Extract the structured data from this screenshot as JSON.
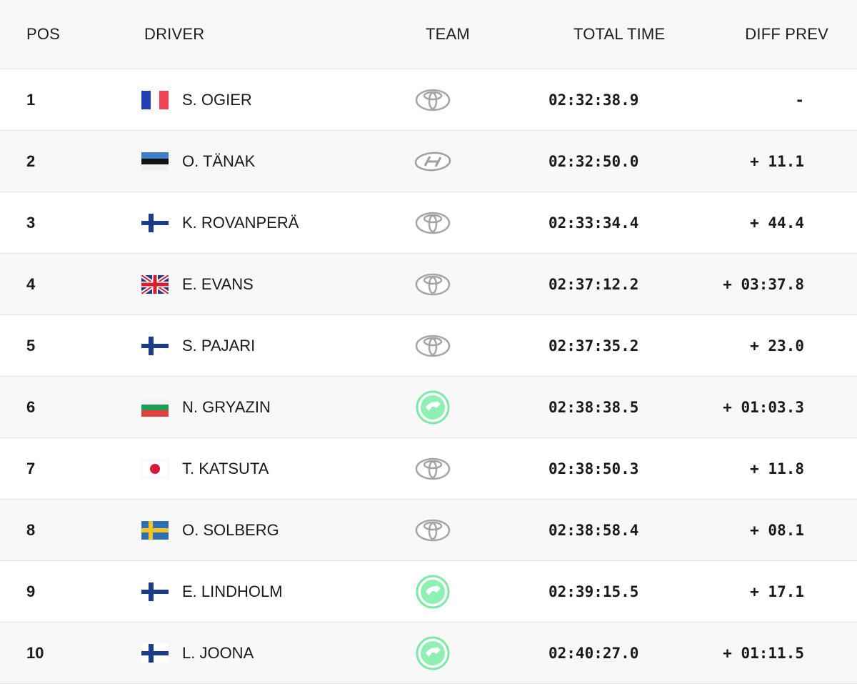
{
  "headers": {
    "pos": "POS",
    "driver": "DRIVER",
    "team": "TEAM",
    "total_time": "TOTAL TIME",
    "diff_prev": "DIFF PREV"
  },
  "rows": [
    {
      "pos": "1",
      "flag": "france-flag",
      "driver": "S. OGIER",
      "team_logo": "toyota-logo-icon",
      "total_time": "02:32:38.9",
      "diff": "-"
    },
    {
      "pos": "2",
      "flag": "estonia-flag",
      "driver": "O. TÄNAK",
      "team_logo": "hyundai-logo-icon",
      "total_time": "02:32:50.0",
      "diff": "+ 11.1"
    },
    {
      "pos": "3",
      "flag": "finland-flag",
      "driver": "K. ROVANPERÄ",
      "team_logo": "toyota-logo-icon",
      "total_time": "02:33:34.4",
      "diff": "+ 44.4"
    },
    {
      "pos": "4",
      "flag": "uk-flag",
      "driver": "E. EVANS",
      "team_logo": "toyota-logo-icon",
      "total_time": "02:37:12.2",
      "diff": "+ 03:37.8"
    },
    {
      "pos": "5",
      "flag": "finland-flag",
      "driver": "S. PAJARI",
      "team_logo": "toyota-logo-icon",
      "total_time": "02:37:35.2",
      "diff": "+ 23.0"
    },
    {
      "pos": "6",
      "flag": "bulgaria-flag",
      "driver": "N. GRYAZIN",
      "team_logo": "skoda-logo-icon",
      "total_time": "02:38:38.5",
      "diff": "+ 01:03.3"
    },
    {
      "pos": "7",
      "flag": "japan-flag",
      "driver": "T. KATSUTA",
      "team_logo": "toyota-logo-icon",
      "total_time": "02:38:50.3",
      "diff": "+ 11.8"
    },
    {
      "pos": "8",
      "flag": "sweden-flag",
      "driver": "O. SOLBERG",
      "team_logo": "toyota-logo-icon",
      "total_time": "02:38:58.4",
      "diff": "+ 08.1"
    },
    {
      "pos": "9",
      "flag": "finland-flag",
      "driver": "E. LINDHOLM",
      "team_logo": "skoda-logo-icon",
      "total_time": "02:39:15.5",
      "diff": "+ 17.1"
    },
    {
      "pos": "10",
      "flag": "finland-flag",
      "driver": "L. JOONA",
      "team_logo": "skoda-logo-icon",
      "total_time": "02:40:27.0",
      "diff": "+ 01:11.5"
    }
  ],
  "colors": {
    "header_bg": "#f7f7f7",
    "row_alt_bg": "#f8f8f8",
    "skoda_green": "#78e8a0",
    "logo_gray": "#9a9a9a"
  }
}
